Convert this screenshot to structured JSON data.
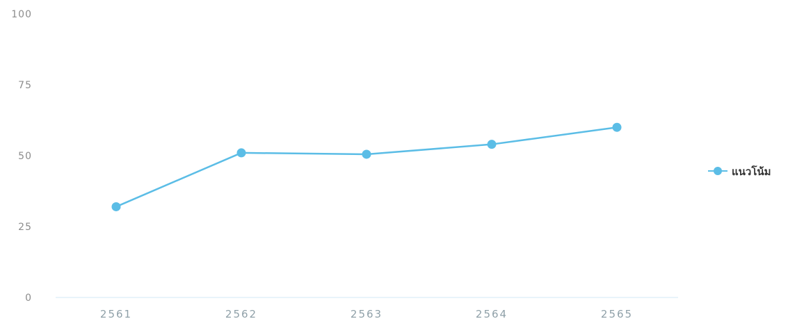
{
  "chart_data": {
    "type": "line",
    "categories": [
      "2561",
      "2562",
      "2563",
      "2564",
      "2565"
    ],
    "series": [
      {
        "name": "แนวโน้ม",
        "values": [
          32,
          51,
          50.5,
          54,
          60
        ],
        "color": "#5bbde6"
      }
    ],
    "ylim": [
      0,
      100
    ],
    "yticks": [
      "0",
      "25",
      "50",
      "75",
      "100"
    ],
    "grid": false,
    "legend_position": "right"
  }
}
